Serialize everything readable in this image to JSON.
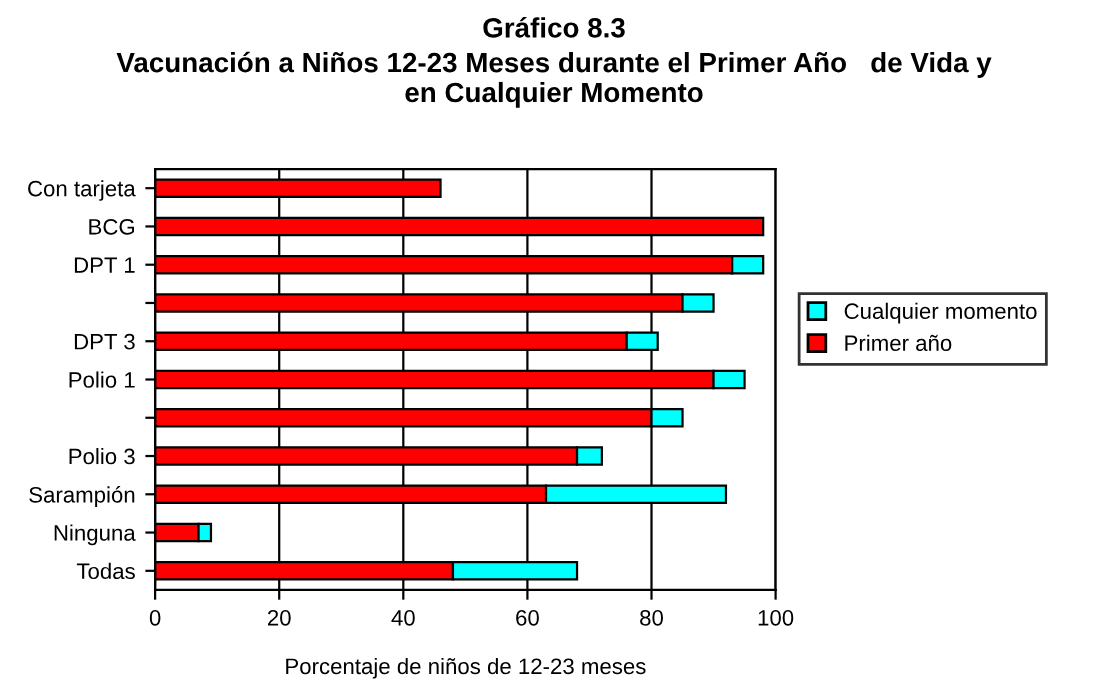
{
  "chart_data": {
    "type": "bar",
    "orientation": "horizontal",
    "stacked": true,
    "title": "Gráfico 8.3",
    "subtitle": "Vacunación a Niños 12-23 Meses durante el Primer Año   de Vida y\nen Cualquier Momento",
    "xlabel": "Porcentaje de niños de 12-23 meses",
    "categories": [
      "Con tarjeta",
      "BCG",
      "DPT 1",
      null,
      "DPT 3",
      "Polio 1",
      null,
      "Polio 3",
      "Sarampión",
      "Ninguna",
      "Todas"
    ],
    "series": [
      {
        "name": "Primer año",
        "color": "#ff0000",
        "values": [
          46,
          98,
          93,
          85,
          76,
          90,
          80,
          68,
          63,
          7,
          48
        ]
      },
      {
        "name": "Cualquier momento",
        "color": "#00ffff",
        "values": [
          null,
          null,
          5,
          5,
          5,
          5,
          5,
          4,
          29,
          2,
          20
        ]
      }
    ],
    "xlim": [
      0,
      100
    ],
    "xticks": [
      0,
      20,
      40,
      60,
      80,
      100
    ],
    "grid": "x",
    "legend": "right"
  }
}
